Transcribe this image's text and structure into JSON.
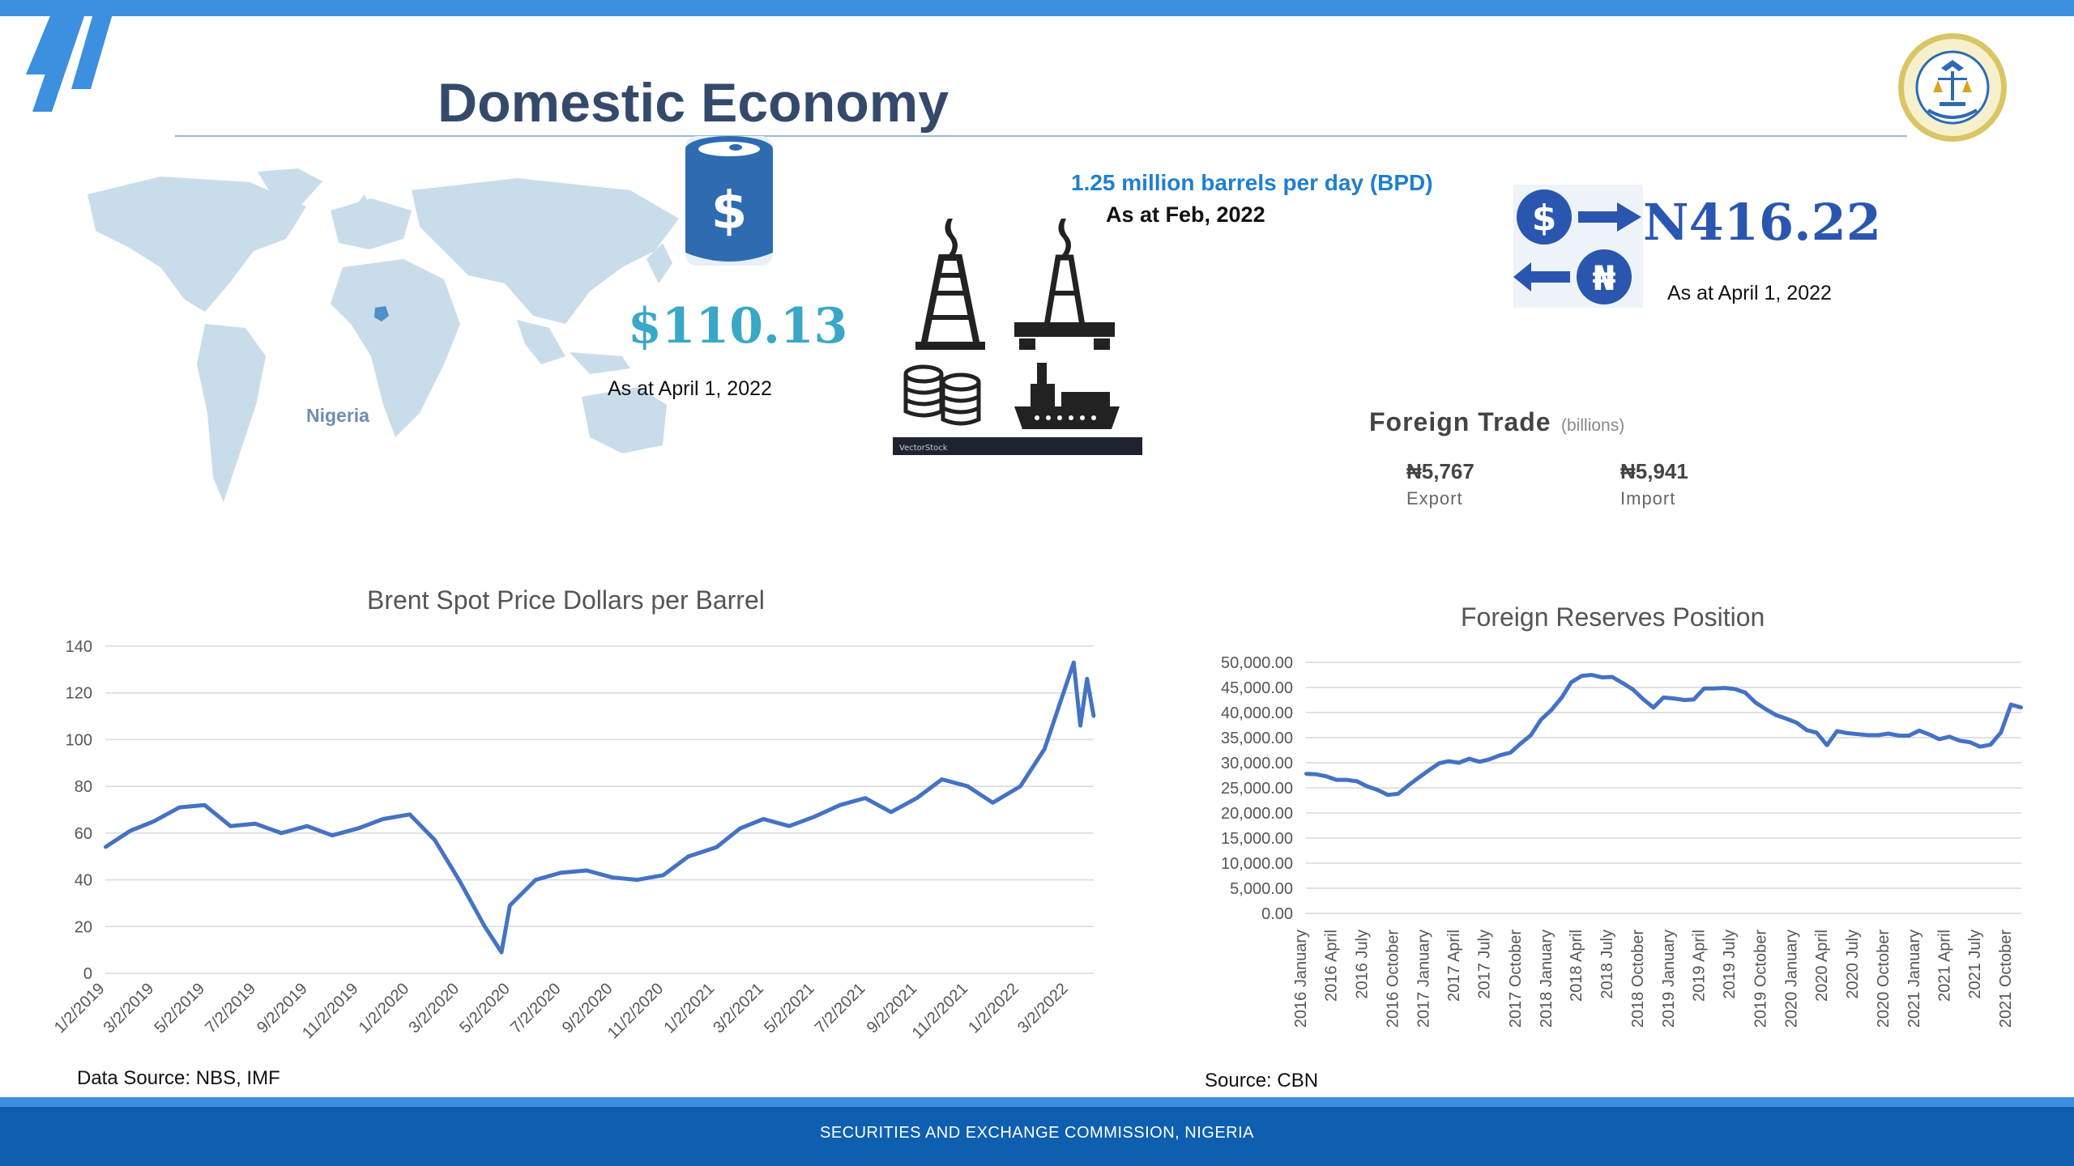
{
  "header": {
    "title": "Domestic Economy"
  },
  "footer": {
    "text": "SECURITIES AND EXCHANGE COMMISSION, NIGERIA"
  },
  "map": {
    "label": "Nigeria"
  },
  "oil_price": {
    "value": "$110.13",
    "as_at": "As at April  1, 2022",
    "icon": "oil-barrel-dollar-icon",
    "color": "#3aa7c6"
  },
  "production": {
    "headline": "1.25 million barrels per day (BPD)",
    "as_at": "As at Feb, 2022",
    "stock_label": "VectorStock",
    "headline_color": "#1f7fd0"
  },
  "exchange_rate": {
    "value": "N416.22",
    "as_at": "As at April 1, 2022",
    "dollar_symbol": "$",
    "naira_symbol": "₦",
    "color": "#2a56b0"
  },
  "foreign_trade": {
    "title": "Foreign Trade",
    "unit": "(billions)",
    "export_value": "₦5,767",
    "export_label": "Export",
    "import_value": "₦5,941",
    "import_label": "Import"
  },
  "sources": {
    "left": "Data Source: NBS, IMF",
    "right": "Source: CBN"
  },
  "chart_data": [
    {
      "type": "line",
      "title": "Brent Spot Price  Dollars per Barrel",
      "ylim": [
        0,
        140
      ],
      "yticks": [
        "0",
        "20",
        "40",
        "60",
        "80",
        "100",
        "120",
        "140"
      ],
      "xtick_labels": [
        "1/2/2019",
        "3/2/2019",
        "5/2/2019",
        "7/2/2019",
        "9/2/2019",
        "11/2/2019",
        "1/2/2020",
        "3/2/2020",
        "5/2/2020",
        "7/2/2020",
        "9/2/2020",
        "11/2/2020",
        "1/2/2021",
        "3/2/2021",
        "5/2/2021",
        "7/2/2021",
        "9/2/2021",
        "11/2/2021",
        "1/2/2022",
        "3/2/2022"
      ],
      "grid": true,
      "color": "#4472c4",
      "x": [
        "1/2/2019",
        "2/1/2019",
        "3/1/2019",
        "4/1/2019",
        "5/1/2019",
        "6/1/2019",
        "7/1/2019",
        "8/1/2019",
        "9/1/2019",
        "10/1/2019",
        "11/1/2019",
        "12/1/2019",
        "1/2/2020",
        "2/1/2020",
        "3/1/2020",
        "4/1/2020",
        "4/21/2020",
        "5/1/2020",
        "6/1/2020",
        "7/1/2020",
        "8/1/2020",
        "9/1/2020",
        "10/1/2020",
        "11/1/2020",
        "12/1/2020",
        "1/4/2021",
        "2/1/2021",
        "3/1/2021",
        "4/1/2021",
        "5/1/2021",
        "6/1/2021",
        "7/1/2021",
        "8/1/2021",
        "9/1/2021",
        "10/1/2021",
        "11/1/2021",
        "12/1/2021",
        "1/3/2022",
        "2/1/2022",
        "3/8/2022",
        "3/16/2022",
        "3/24/2022",
        "4/1/2022"
      ],
      "y": [
        54,
        61,
        65,
        71,
        72,
        63,
        64,
        60,
        63,
        59,
        62,
        66,
        68,
        57,
        40,
        20,
        9,
        29,
        40,
        43,
        44,
        41,
        40,
        42,
        50,
        54,
        62,
        66,
        63,
        67,
        72,
        75,
        69,
        75,
        83,
        80,
        73,
        80,
        96,
        133,
        106,
        126,
        110
      ]
    },
    {
      "type": "line",
      "title": "Foreign Reserves Position",
      "ylim": [
        0,
        50000
      ],
      "yticks": [
        "0.00",
        "5,000.00",
        "10,000.00",
        "15,000.00",
        "20,000.00",
        "25,000.00",
        "30,000.00",
        "35,000.00",
        "40,000.00",
        "45,000.00",
        "50,000.00"
      ],
      "xtick_labels": [
        "2016 January",
        "2016 April",
        "2016 July",
        "2016 October",
        "2017 January",
        "2017 April",
        "2017 July",
        "2017 October",
        "2018 January",
        "2018 April",
        "2018 July",
        "2018 October",
        "2019 January",
        "2019 April",
        "2019 July",
        "2019 October",
        "2020 January",
        "2020 April",
        "2020 July",
        "2020 October",
        "2021 January",
        "2021 April",
        "2021 July",
        "2021 October"
      ],
      "grid": true,
      "color": "#4472c4",
      "x": [
        "2016-01",
        "2016-02",
        "2016-03",
        "2016-04",
        "2016-05",
        "2016-06",
        "2016-07",
        "2016-08",
        "2016-09",
        "2016-10",
        "2016-11",
        "2016-12",
        "2017-01",
        "2017-02",
        "2017-03",
        "2017-04",
        "2017-05",
        "2017-06",
        "2017-07",
        "2017-08",
        "2017-09",
        "2017-10",
        "2017-11",
        "2017-12",
        "2018-01",
        "2018-02",
        "2018-03",
        "2018-04",
        "2018-05",
        "2018-06",
        "2018-07",
        "2018-08",
        "2018-09",
        "2018-10",
        "2018-11",
        "2018-12",
        "2019-01",
        "2019-02",
        "2019-03",
        "2019-04",
        "2019-05",
        "2019-06",
        "2019-07",
        "2019-08",
        "2019-09",
        "2019-10",
        "2019-11",
        "2019-12",
        "2020-01",
        "2020-02",
        "2020-03",
        "2020-04",
        "2020-05",
        "2020-06",
        "2020-07",
        "2020-08",
        "2020-09",
        "2020-10",
        "2020-11",
        "2020-12",
        "2021-01",
        "2021-02",
        "2021-03",
        "2021-04",
        "2021-05",
        "2021-06",
        "2021-07",
        "2021-08",
        "2021-09",
        "2021-10",
        "2021-11"
      ],
      "y": [
        27800,
        27700,
        27300,
        26600,
        26600,
        26300,
        25300,
        24600,
        23600,
        23800,
        25500,
        27000,
        28500,
        29900,
        30300,
        30000,
        30800,
        30200,
        30700,
        31500,
        32000,
        33800,
        35500,
        38600,
        40500,
        43000,
        46000,
        47300,
        47500,
        47000,
        47100,
        45900,
        44600,
        42700,
        41000,
        43000,
        42800,
        42500,
        42600,
        44800,
        44800,
        44900,
        44700,
        44000,
        42000,
        40700,
        39500,
        38800,
        38000,
        36500,
        36000,
        33500,
        36300,
        35900,
        35700,
        35500,
        35500,
        35800,
        35400,
        35400,
        36400,
        35600,
        34700,
        35200,
        34400,
        34100,
        33200,
        33600,
        36000,
        41600,
        41000
      ]
    }
  ]
}
